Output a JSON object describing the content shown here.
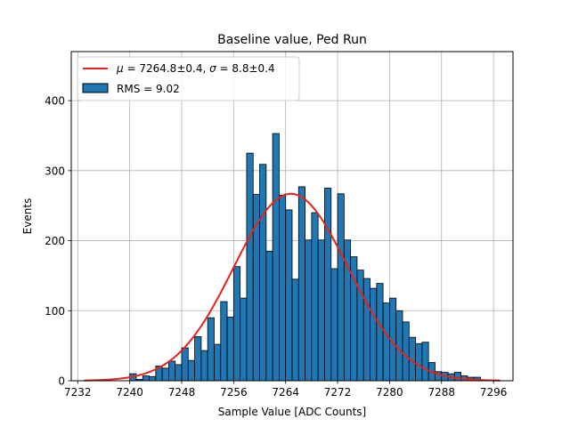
{
  "chart_data": {
    "type": "bar",
    "title": "Baseline value, Ped Run",
    "xlabel": "Sample Value [ADC Counts]",
    "ylabel": "Events",
    "xlim": [
      7231,
      7299
    ],
    "ylim": [
      0,
      470
    ],
    "xticks": [
      7232,
      7240,
      7248,
      7256,
      7264,
      7272,
      7280,
      7288,
      7296
    ],
    "yticks": [
      0,
      100,
      200,
      300,
      400
    ],
    "grid": true,
    "legend_position": "top-left",
    "bin_width": 1,
    "series": [
      {
        "name": "RMS = 9.02",
        "color": "#1f77b4",
        "edge_color": "#000000",
        "bins": [
          [
            7240,
            10
          ],
          [
            7241,
            2
          ],
          [
            7242,
            7
          ],
          [
            7243,
            6
          ],
          [
            7244,
            21
          ],
          [
            7245,
            18
          ],
          [
            7246,
            28
          ],
          [
            7247,
            23
          ],
          [
            7248,
            47
          ],
          [
            7249,
            29
          ],
          [
            7250,
            63
          ],
          [
            7251,
            43
          ],
          [
            7252,
            90
          ],
          [
            7253,
            52
          ],
          [
            7254,
            113
          ],
          [
            7255,
            91
          ],
          [
            7256,
            163
          ],
          [
            7257,
            118
          ],
          [
            7258,
            325
          ],
          [
            7259,
            266
          ],
          [
            7260,
            309
          ],
          [
            7261,
            185
          ],
          [
            7262,
            353
          ],
          [
            7263,
            265
          ],
          [
            7264,
            244
          ],
          [
            7265,
            145
          ],
          [
            7266,
            277
          ],
          [
            7267,
            201
          ],
          [
            7268,
            240
          ],
          [
            7269,
            201
          ],
          [
            7270,
            275
          ],
          [
            7271,
            160
          ],
          [
            7272,
            267
          ],
          [
            7273,
            201
          ],
          [
            7274,
            177
          ],
          [
            7275,
            158
          ],
          [
            7276,
            146
          ],
          [
            7277,
            132
          ],
          [
            7278,
            139
          ],
          [
            7279,
            111
          ],
          [
            7280,
            118
          ],
          [
            7281,
            100
          ],
          [
            7282,
            84
          ],
          [
            7283,
            62
          ],
          [
            7284,
            53
          ],
          [
            7285,
            55
          ],
          [
            7286,
            26
          ],
          [
            7287,
            13
          ],
          [
            7288,
            12
          ],
          [
            7289,
            10
          ],
          [
            7290,
            12
          ],
          [
            7291,
            7
          ],
          [
            7292,
            5
          ],
          [
            7293,
            5
          ]
        ]
      }
    ],
    "fit": {
      "type": "gaussian",
      "label": "$\\mu=7264.8\\pm0.4$, $\\sigma=8.8\\pm0.4$",
      "color": "#e8221a",
      "mu": 7264.8,
      "sigma": 8.8,
      "amplitude": 267,
      "x_range": [
        7233,
        7297
      ]
    },
    "legend": {
      "fit_label_parts": [
        "μ",
        " = 7264.8±0.4, ",
        "σ",
        " = 8.8±0.4"
      ],
      "hist_label": "RMS = 9.02"
    }
  }
}
